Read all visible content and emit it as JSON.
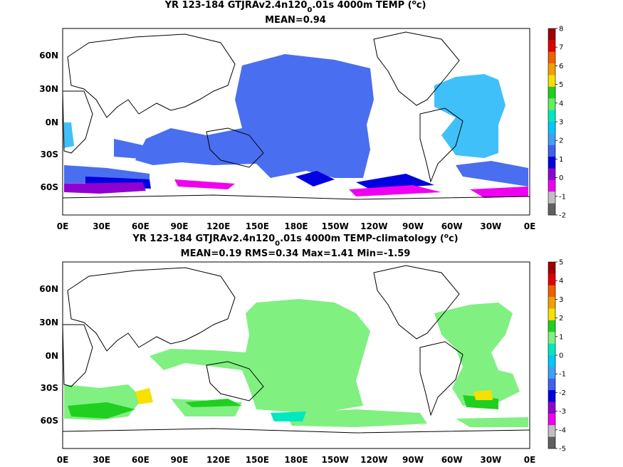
{
  "panels": [
    {
      "title_main": "YR 123-184 GTJRAv2.4n120",
      "title_sub": "0",
      "title_rest": ".01s 4000m TEMP (",
      "title_sup": "o",
      "title_end": "c)",
      "stats": "MEAN=0.94",
      "colorbar_ticks": [
        "8",
        "7",
        "6",
        "5",
        "4",
        "3",
        "2",
        "1",
        "0",
        "-1",
        "-2"
      ],
      "colorbar_colors": [
        "#a00000",
        "#e00000",
        "#f06000",
        "#f0a000",
        "#f8e000",
        "#20d020",
        "#60f060",
        "#00e8c0",
        "#00c8f8",
        "#40a0f8",
        "#4060f0",
        "#0000e0",
        "#9000d0",
        "#f000f0",
        "#c0c0c0",
        "#606060"
      ]
    },
    {
      "title_main": "YR 123-184 GTJRAv2.4n120",
      "title_sub": "0",
      "title_rest": ".01s 4000m TEMP-climatology (",
      "title_sup": "o",
      "title_end": "c)",
      "stats": "MEAN=0.19   RMS=0.34   Max=1.41   Min=-1.59",
      "colorbar_ticks": [
        "5",
        "4",
        "3",
        "2",
        "1",
        "0",
        "-1",
        "-2",
        "-3",
        "-4",
        "-5"
      ],
      "colorbar_colors": [
        "#a00000",
        "#e00000",
        "#f06000",
        "#f0a000",
        "#f8e000",
        "#20d020",
        "#80f080",
        "#00e8c0",
        "#00c8f8",
        "#40a0f8",
        "#4060f0",
        "#0000e0",
        "#9000d0",
        "#f000f0",
        "#c0c0c0",
        "#606060"
      ]
    }
  ],
  "lon_labels": [
    "0E",
    "30E",
    "60E",
    "90E",
    "120E",
    "150E",
    "180E",
    "150W",
    "120W",
    "90W",
    "60W",
    "30W",
    "0E"
  ],
  "lat_labels": [
    "60N",
    "30N",
    "0N",
    "30S",
    "60S"
  ]
}
